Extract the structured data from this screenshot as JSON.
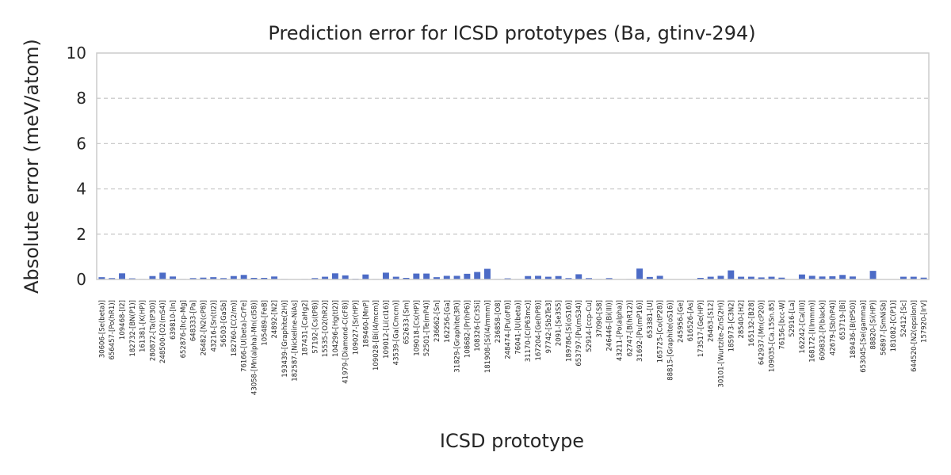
{
  "chart_data": {
    "type": "bar",
    "title": "Prediction error for ICSD prototypes (Ba, gtinv-294)",
    "xlabel": "ICSD prototype",
    "ylabel": "Absolute error (meV/atom)",
    "ylim": [
      0,
      10
    ],
    "yticks": [
      "0",
      "2",
      "4",
      "6",
      "8",
      "10"
    ],
    "grid": "horizontal-dashed",
    "bar_color": "#4c6bc6",
    "categories": [
      "30606-[Se(beta)]",
      "656457-[Po(hR1)]",
      "109468-[I2]",
      "182732-[BN(P1)]",
      "161381-[K(HP)]",
      "280872-[Ta(tP30)]",
      "248500-[O2(mS4)]",
      "639810-[In]",
      "652876-[hcp-Mg]",
      "648333-[Pa]",
      "26482-[N2(cP8)]",
      "43216-[Sn(tI2)]",
      "56503-[GaSb]",
      "182760-[C(2/m)]",
      "76166-[U(beta)-CrFe]",
      "43058-[Mn(alpha)-Mn(cI58)]",
      "105489-[FeB]",
      "24892-[N2]",
      "193439-[Graphite(2H)]",
      "182587-[Nickeline-NiAs]",
      "187431-[CaHg2]",
      "57192-[Cs(tP8)]",
      "15535-[O2(hR2)]",
      "104296-[Hg(tI2)]",
      "41979-[Diamond-C(cF8)]",
      "109027-[Sr(HP)]",
      "189460-[MnP]",
      "109028-[Bi(I4/mcm)]",
      "109012-[Li(cI16)]",
      "43539-[Ga(Cmcm)]",
      "652633-[Sm]",
      "109018-[Cs(HP)]",
      "52501-[Te(mP4)]",
      "236662-[Sn]",
      "162256-[Ga]",
      "31829-[Graphite(3R)]",
      "108682-[Pr(hP6)]",
      "108326-[Cr3Si]",
      "181908-[Si(I4/mmm)]",
      "236858-[O8]",
      "248474-[Pu(oF8)]",
      "76041-[U(beta)]",
      "31170-[C(P63mc)]",
      "167204-[Ge(hP8)]",
      "97742-[Sb2Te3]",
      "2091-[Se3S5]",
      "189786-[Si(oS16)]",
      "653797-[Pu(mS34)]",
      "52914-[ccp-Cu]",
      "37090-[S8]",
      "246446-[Bi(III)]",
      "43211-[Po(alpha)]",
      "62747-[B(hR12)]",
      "31692-[Pu(mP16)]",
      "653381-[U]",
      "165725-[Co(tP28)]",
      "88815-[Graphite(oS16)]",
      "245956-[Ge]",
      "616526-[As]",
      "173517-[Ge(HP)]",
      "26463-[S12]",
      "30101-[Wurtzite-ZnS(2H)]",
      "185973-[C3N2]",
      "28540-[H2]",
      "165132-[B28]",
      "642937-[Mn(cP20)]",
      "109035-[Ca.15Sn.85]",
      "76156-[bcc-W]",
      "52916-[La]",
      "162242-[Ca(III)]",
      "168172-[I(Immm)]",
      "609832-[P(black)]",
      "42679-[Sb(hP4)]",
      "653719-[Bi]",
      "189436-[B(tP50)]",
      "653045-[Se(gamma)]",
      "88820-[Si(HP)]",
      "56897-[SmNiSb]",
      "181082-[C(P1)]",
      "52412-[Sc]",
      "644520-[N2(epsilon)]",
      "157920-[IrV]"
    ],
    "values": [
      0.1,
      0.06,
      0.27,
      0.05,
      0.02,
      0.15,
      0.3,
      0.13,
      0.02,
      0.06,
      0.08,
      0.1,
      0.06,
      0.15,
      0.2,
      0.07,
      0.07,
      0.13,
      0.02,
      0.01,
      0.02,
      0.06,
      0.12,
      0.27,
      0.18,
      0.03,
      0.22,
      0.02,
      0.3,
      0.12,
      0.07,
      0.26,
      0.26,
      0.1,
      0.16,
      0.16,
      0.25,
      0.33,
      0.47,
      0.02,
      0.05,
      0.02,
      0.15,
      0.16,
      0.12,
      0.15,
      0.06,
      0.23,
      0.06,
      0.02,
      0.06,
      0.01,
      0.02,
      0.48,
      0.11,
      0.16,
      0.01,
      0.01,
      0.01,
      0.07,
      0.12,
      0.16,
      0.4,
      0.12,
      0.12,
      0.09,
      0.12,
      0.08,
      0.01,
      0.22,
      0.16,
      0.13,
      0.14,
      0.2,
      0.13,
      0.01,
      0.38,
      0.01,
      0.01,
      0.12,
      0.12,
      0.08
    ]
  }
}
